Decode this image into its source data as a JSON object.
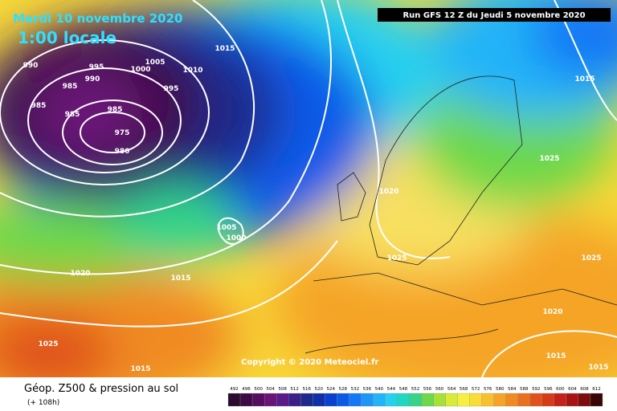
{
  "header": {
    "date": "Mardi 10 novembre 2020",
    "time": "1:00 locale",
    "run": "Run GFS 12 Z du Jeudi 5 novembre 2020"
  },
  "copyright": "Copyright © 2020 Meteociel.fr",
  "legend": {
    "title": "Géop. Z500 & pression au sol",
    "lead": "(+ 108h)",
    "levels": [
      492,
      496,
      500,
      504,
      508,
      512,
      516,
      520,
      524,
      528,
      532,
      536,
      540,
      544,
      548,
      552,
      556,
      560,
      564,
      568,
      572,
      576,
      580,
      584,
      588,
      592,
      596,
      600,
      604,
      608,
      612
    ],
    "colors": [
      "#2b0b2e",
      "#3d0a45",
      "#560c60",
      "#6a1478",
      "#5a1a8a",
      "#3a1f88",
      "#1d2a8c",
      "#102fa8",
      "#0a3fcf",
      "#0a5ae8",
      "#1478f5",
      "#1e95f8",
      "#22b4f8",
      "#25d0f0",
      "#20d8c0",
      "#35d48a",
      "#6cd84a",
      "#a8e03a",
      "#d8ea3a",
      "#f5f040",
      "#f8dc38",
      "#f8c030",
      "#f5a428",
      "#f08a22",
      "#e8701e",
      "#e0521a",
      "#d63a18",
      "#c42216",
      "#a81414",
      "#7a0c0c",
      "#3a0505"
    ]
  },
  "isobars": [
    990,
    995,
    1005,
    1000,
    990,
    1010,
    1015,
    985,
    995,
    985,
    985,
    985,
    975,
    980,
    1015,
    1025,
    1020,
    1005,
    1000,
    1025,
    1025,
    1020,
    1015,
    1020,
    1015,
    1025,
    1015,
    1015
  ]
}
